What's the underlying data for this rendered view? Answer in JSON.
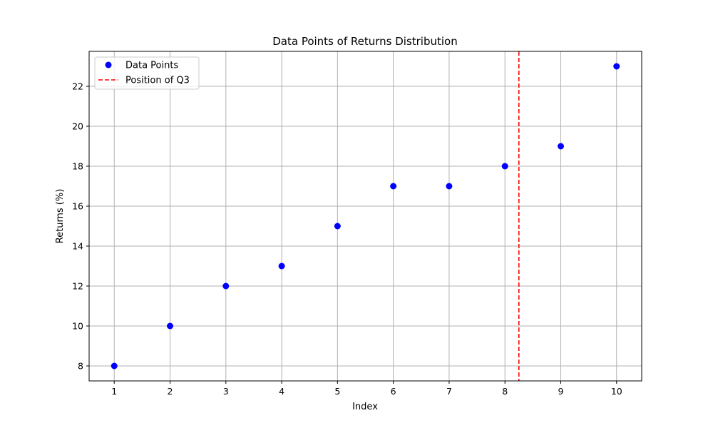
{
  "chart_data": {
    "type": "scatter",
    "title": "Data Points of Returns Distribution",
    "xlabel": "Index",
    "ylabel": "Returns (%)",
    "xlim": [
      0.55,
      10.45
    ],
    "ylim": [
      7.25,
      23.75
    ],
    "xticks": [
      1,
      2,
      3,
      4,
      5,
      6,
      7,
      8,
      9,
      10
    ],
    "yticks": [
      8,
      10,
      12,
      14,
      16,
      18,
      20,
      22
    ],
    "grid": true,
    "legend_position": "upper-left",
    "series": [
      {
        "name": "Data Points",
        "color": "#0000ff",
        "x": [
          1,
          2,
          3,
          4,
          5,
          6,
          7,
          8,
          9,
          10
        ],
        "y": [
          8,
          10,
          12,
          13,
          15,
          17,
          17,
          18,
          19,
          23
        ]
      }
    ],
    "reference_lines": [
      {
        "name": "Position of Q3",
        "orientation": "vertical",
        "x": 8.25,
        "color": "#ff0000",
        "style": "dashed"
      }
    ]
  }
}
